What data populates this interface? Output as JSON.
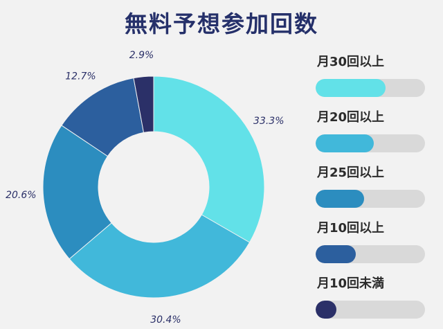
{
  "title": "無料予想参加回数",
  "chart_data": {
    "type": "pie",
    "slices": [
      {
        "label": "月30回以上",
        "value": 33.3,
        "value_label": "33.3%",
        "color": "#62e1e8",
        "level": 0.64
      },
      {
        "label": "月20回以上",
        "value": 30.4,
        "value_label": "30.4%",
        "color": "#41b8da",
        "level": 0.53
      },
      {
        "label": "月25回以上",
        "value": 20.6,
        "value_label": "20.6%",
        "color": "#2c8dbf",
        "level": 0.44
      },
      {
        "label": "月10回以上",
        "value": 12.7,
        "value_label": "12.7%",
        "color": "#2c5f9e",
        "level": 0.37
      },
      {
        "label": "月10回未満",
        "value": 2.9,
        "value_label": "2.9%",
        "color": "#2b3068",
        "level": 0.19
      }
    ]
  }
}
